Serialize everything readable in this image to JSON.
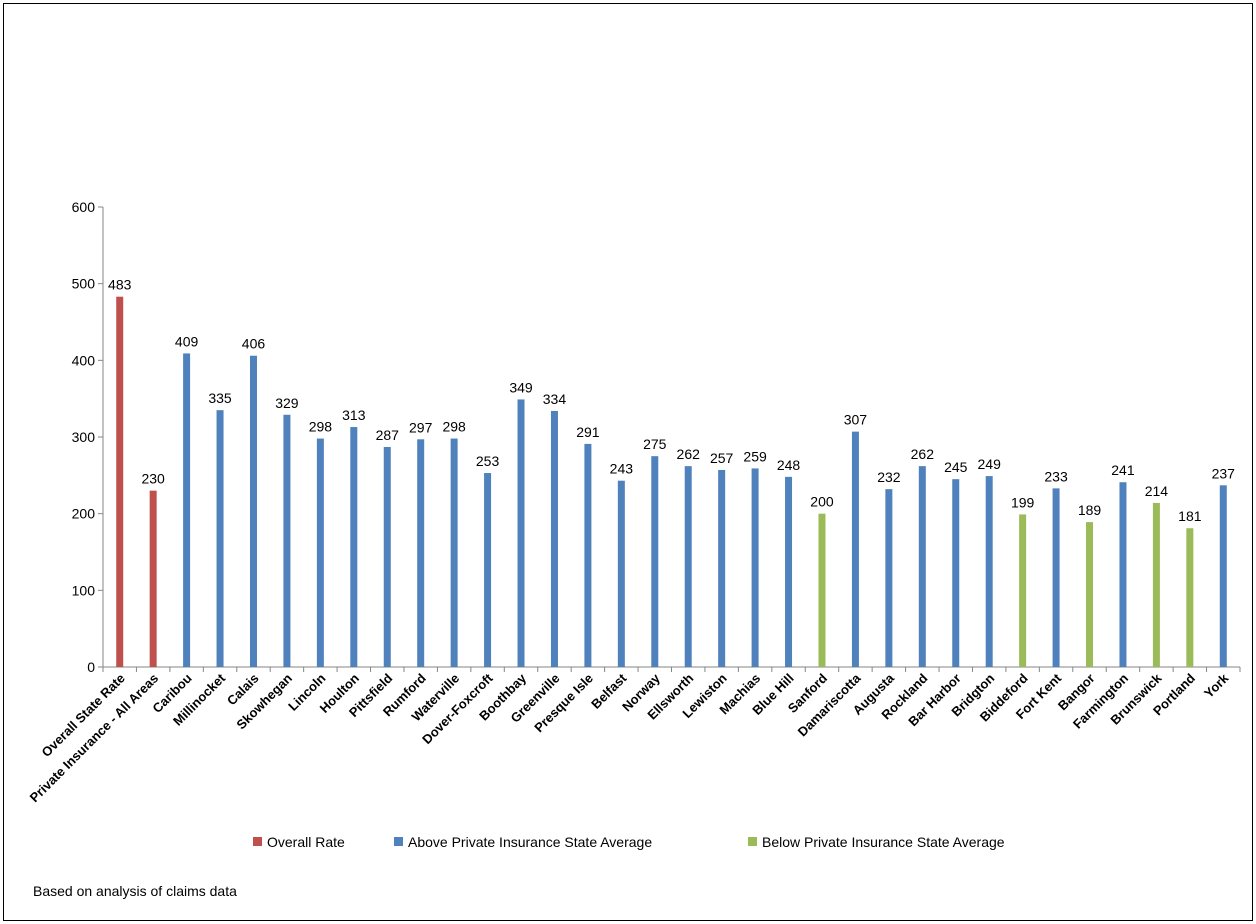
{
  "chart_data": {
    "type": "bar",
    "categories": [
      "Overall State Rate",
      "Private Insurance - All Areas",
      "Caribou",
      "Millinocket",
      "Calais",
      "Skowhegan",
      "Lincoln",
      "Houlton",
      "Pittsfield",
      "Rumford",
      "Waterville",
      "Dover-Foxcroft",
      "Boothbay",
      "Greenville",
      "Presque Isle",
      "Belfast",
      "Norway",
      "Ellsworth",
      "Lewiston",
      "Machias",
      "Blue Hill",
      "Sanford",
      "Damariscotta",
      "Augusta",
      "Rockland",
      "Bar Harbor",
      "Bridgton",
      "Biddeford",
      "Fort Kent",
      "Bangor",
      "Farmington",
      "Brunswick",
      "Portland",
      "York"
    ],
    "series": [
      {
        "name": "Overall Rate",
        "color": "#c0504d",
        "values": [
          483,
          230,
          null,
          null,
          null,
          null,
          null,
          null,
          null,
          null,
          null,
          null,
          null,
          null,
          null,
          null,
          null,
          null,
          null,
          null,
          null,
          null,
          null,
          null,
          null,
          null,
          null,
          null,
          null,
          null,
          null,
          null,
          null,
          null
        ]
      },
      {
        "name": "Above Private Insurance State Average",
        "color": "#4f81bd",
        "values": [
          null,
          null,
          409,
          335,
          406,
          329,
          298,
          313,
          287,
          297,
          298,
          253,
          349,
          334,
          291,
          243,
          275,
          262,
          257,
          259,
          248,
          null,
          307,
          232,
          262,
          245,
          249,
          null,
          233,
          null,
          241,
          null,
          null,
          237
        ]
      },
      {
        "name": "Below Private Insurance State Average",
        "color": "#9bbb59",
        "values": [
          null,
          null,
          null,
          null,
          null,
          null,
          null,
          null,
          null,
          null,
          null,
          null,
          null,
          null,
          null,
          null,
          null,
          null,
          null,
          null,
          null,
          200,
          null,
          null,
          null,
          null,
          null,
          199,
          null,
          189,
          null,
          214,
          181,
          null
        ]
      }
    ],
    "ylim": [
      0,
      600
    ],
    "yticks": [
      0,
      100,
      200,
      300,
      400,
      500,
      600
    ],
    "legend": "bottom",
    "note": "Based on analysis of claims data"
  }
}
